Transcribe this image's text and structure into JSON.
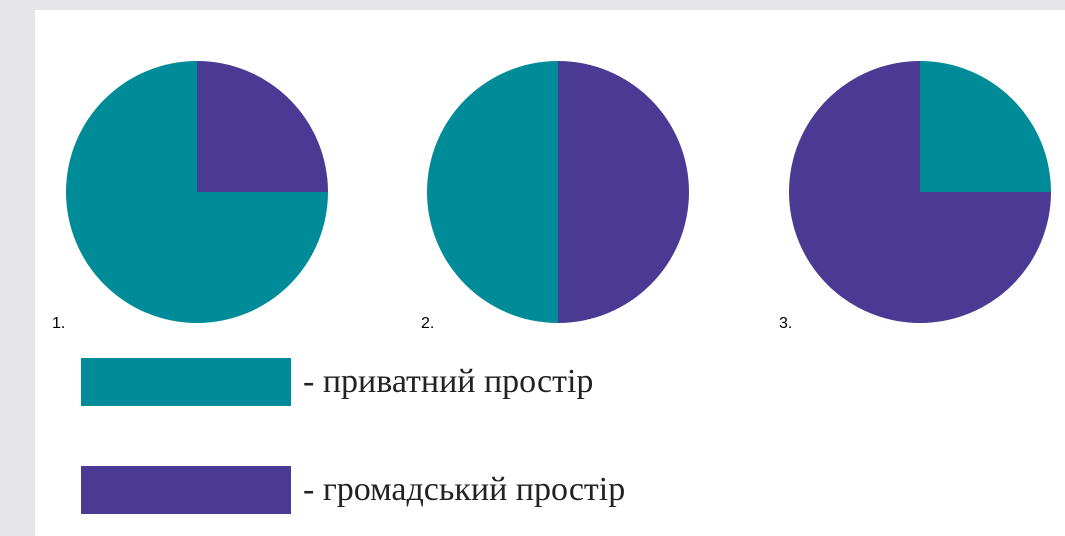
{
  "chart_data": [
    {
      "type": "pie",
      "number_label": "1.",
      "slices": [
        {
          "series": "public",
          "fraction": 0.25,
          "color": "#4a3a94"
        },
        {
          "series": "private",
          "fraction": 0.75,
          "color": "#008b99"
        }
      ]
    },
    {
      "type": "pie",
      "number_label": "2.",
      "slices": [
        {
          "series": "public",
          "fraction": 0.5,
          "color": "#4a3a94"
        },
        {
          "series": "private",
          "fraction": 0.5,
          "color": "#008b99"
        }
      ]
    },
    {
      "type": "pie",
      "number_label": "3.",
      "slices": [
        {
          "series": "private",
          "fraction": 0.25,
          "color": "#008b99"
        },
        {
          "series": "public",
          "fraction": 0.75,
          "color": "#4a3a94"
        }
      ]
    }
  ],
  "legend": {
    "items": [
      {
        "label": "- приватний простір",
        "color": "#008b99"
      },
      {
        "label": "- громадський простір",
        "color": "#4a3a94"
      }
    ]
  }
}
